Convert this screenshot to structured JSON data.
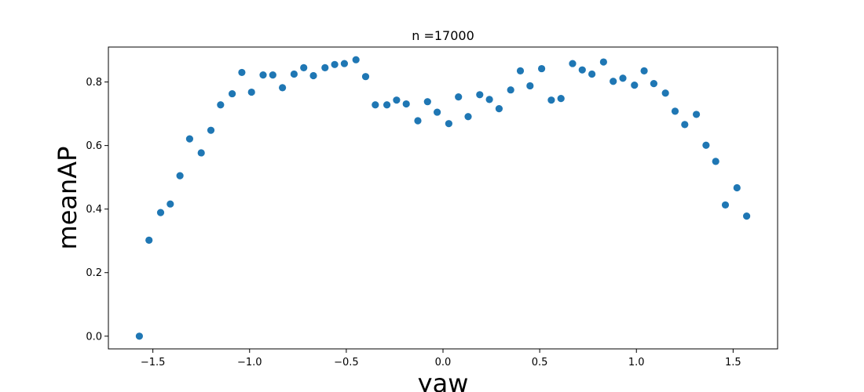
{
  "chart_data": {
    "type": "scatter",
    "title": "n =17000",
    "xlabel": "yaw",
    "ylabel": "meanAP",
    "xlim": [
      -1.73,
      1.73
    ],
    "ylim": [
      -0.04,
      0.91
    ],
    "xticks": [
      -1.5,
      -1.0,
      -0.5,
      0.0,
      0.5,
      1.0,
      1.5
    ],
    "xtick_labels": [
      "−1.5",
      "−1.0",
      "−0.5",
      "0.0",
      "0.5",
      "1.0",
      "1.5"
    ],
    "yticks": [
      0.0,
      0.2,
      0.4,
      0.6,
      0.8
    ],
    "ytick_labels": [
      "0.0",
      "0.2",
      "0.4",
      "0.6",
      "0.8"
    ],
    "grid": false,
    "color": "#1f77b4",
    "x": [
      -1.57,
      -1.52,
      -1.46,
      -1.41,
      -1.36,
      -1.31,
      -1.25,
      -1.2,
      -1.15,
      -1.09,
      -1.04,
      -0.99,
      -0.93,
      -0.88,
      -0.83,
      -0.77,
      -0.72,
      -0.67,
      -0.61,
      -0.56,
      -0.51,
      -0.45,
      -0.4,
      -0.35,
      -0.29,
      -0.24,
      -0.19,
      -0.13,
      -0.08,
      -0.03,
      0.03,
      0.08,
      0.13,
      0.19,
      0.24,
      0.29,
      0.35,
      0.4,
      0.45,
      0.51,
      0.56,
      0.61,
      0.67,
      0.72,
      0.77,
      0.83,
      0.88,
      0.93,
      0.99,
      1.04,
      1.09,
      1.15,
      1.2,
      1.25,
      1.31,
      1.36,
      1.41,
      1.46,
      1.52,
      1.57
    ],
    "y": [
      0.0,
      0.302,
      0.389,
      0.416,
      0.505,
      0.621,
      0.577,
      0.648,
      0.728,
      0.763,
      0.83,
      0.768,
      0.822,
      0.822,
      0.782,
      0.825,
      0.845,
      0.82,
      0.845,
      0.855,
      0.858,
      0.87,
      0.817,
      0.728,
      0.728,
      0.743,
      0.731,
      0.678,
      0.738,
      0.705,
      0.669,
      0.753,
      0.691,
      0.76,
      0.745,
      0.716,
      0.775,
      0.835,
      0.788,
      0.842,
      0.743,
      0.748,
      0.858,
      0.838,
      0.825,
      0.863,
      0.802,
      0.812,
      0.79,
      0.835,
      0.795,
      0.765,
      0.708,
      0.666,
      0.698,
      0.601,
      0.55,
      0.413,
      0.467,
      0.378
    ]
  }
}
